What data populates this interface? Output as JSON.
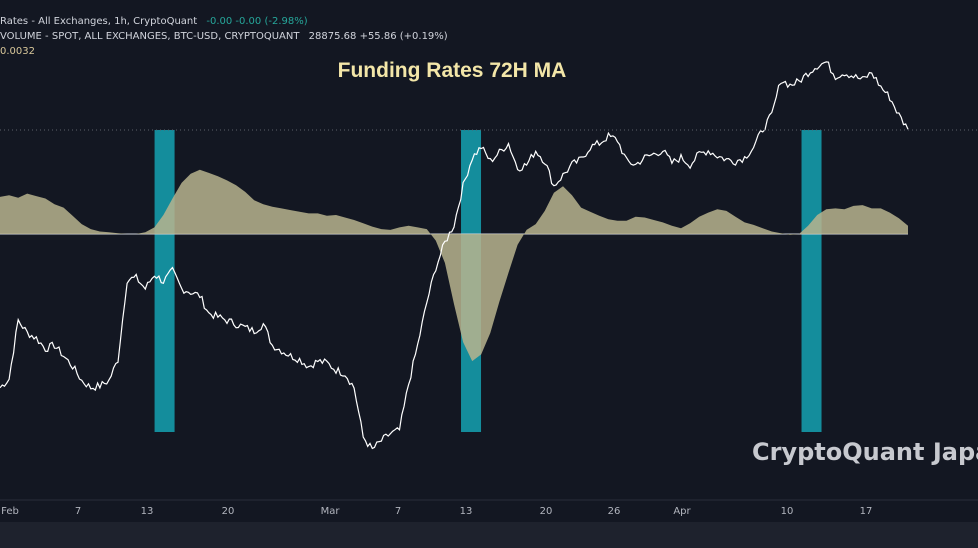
{
  "legend": {
    "line1_name": "Rates - All Exchanges, 1h, CryptoQuant",
    "line1_values": "-0.00  -0.00 (-2.98%)",
    "line2_name": "VOLUME - SPOT, ALL EXCHANGES, BTC-USD, CRYPTOQUANT",
    "line2_values": "28875.68  +55.86 (+0.19%)",
    "line3_value": "0.0032"
  },
  "watermark": "CryptoQuant Japa",
  "colors": {
    "background": "#131722",
    "price_line": "#ffffff",
    "funding_fill": "#b8b48e",
    "highlight_band": "#16b5c6",
    "title": "#f3e6a8",
    "axis_text": "#b2b5be",
    "watermark": "#c7c9cf"
  },
  "chart_data": {
    "type": "line",
    "title": "Funding Rates 72H MA",
    "x_ticks": [
      "Feb",
      "7",
      "13",
      "20",
      "Mar",
      "7",
      "13",
      "20",
      "26",
      "Apr",
      "10",
      "17"
    ],
    "series": [
      {
        "kind": "area",
        "values": [
          0.0045,
          0.0047,
          0.0044,
          0.0049,
          0.0046,
          0.0043,
          0.0036,
          0.0032,
          0.0022,
          0.0012,
          0.0006,
          0.0003,
          0.0002,
          0.0001,
          0.0,
          0.0,
          0.0002,
          0.0008,
          0.0023,
          0.0043,
          0.0062,
          0.0073,
          0.0078,
          0.0074,
          0.007,
          0.0065,
          0.0059,
          0.0051,
          0.0041,
          0.0036,
          0.0033,
          0.0031,
          0.0029,
          0.0027,
          0.0025,
          0.0025,
          0.0022,
          0.0023,
          0.002,
          0.0017,
          0.0013,
          0.0009,
          0.0006,
          0.0005,
          0.0008,
          0.001,
          0.0008,
          0.0006,
          -0.0008,
          -0.0035,
          -0.0085,
          -0.0131,
          -0.0154,
          -0.0146,
          -0.012,
          -0.0082,
          -0.0047,
          -0.0013,
          0.0005,
          0.0012,
          0.0028,
          0.005,
          0.0058,
          0.0047,
          0.0032,
          0.0027,
          0.0022,
          0.0018,
          0.0016,
          0.0016,
          0.0021,
          0.002,
          0.0017,
          0.0014,
          0.001,
          0.0007,
          0.0013,
          0.0021,
          0.0026,
          0.003,
          0.0028,
          0.0021,
          0.0014,
          0.0011,
          0.0007,
          0.0003,
          0.0001,
          -0.0001,
          0.0,
          0.001,
          0.0023,
          0.003,
          0.0031,
          0.003,
          0.0034,
          0.0035,
          0.0031,
          0.0031,
          0.0026,
          0.0019,
          0.001
        ]
      },
      {
        "kind": "line",
        "values": [
          21600,
          21850,
          23500,
          23150,
          23000,
          22700,
          22800,
          22500,
          22200,
          21800,
          21600,
          21650,
          21800,
          22400,
          24650,
          24700,
          24400,
          24800,
          24600,
          24900,
          24400,
          24300,
          24200,
          23700,
          23600,
          23500,
          23400,
          23300,
          23200,
          23400,
          22800,
          22650,
          22500,
          22400,
          22200,
          22350,
          22300,
          22100,
          22000,
          21600,
          20200,
          19850,
          20100,
          20300,
          20400,
          21700,
          22800,
          24000,
          25000,
          25700,
          26200,
          27300,
          28100,
          28400,
          28000,
          28250,
          28500,
          27800,
          27900,
          28300,
          28000,
          27300,
          27600,
          27900,
          28050,
          28400,
          28500,
          28700,
          28600,
          28000,
          27900,
          28100,
          28200,
          28300,
          27950,
          28100,
          27900,
          28200,
          28300,
          28150,
          28050,
          28000,
          28100,
          28400,
          28900,
          29300,
          30300,
          30150,
          30250,
          30500,
          30700,
          30800,
          30400,
          30500,
          30400,
          30300,
          30500,
          30100,
          29800,
          29300,
          28900
        ]
      }
    ],
    "band_x": [
      14.5,
      41.5,
      71.5
    ],
    "x_range": [
      0,
      80
    ],
    "price_range": [
      19500,
      31000
    ],
    "funding_range": [
      -0.016,
      0.016
    ],
    "legend": "top-left",
    "grid": false
  }
}
